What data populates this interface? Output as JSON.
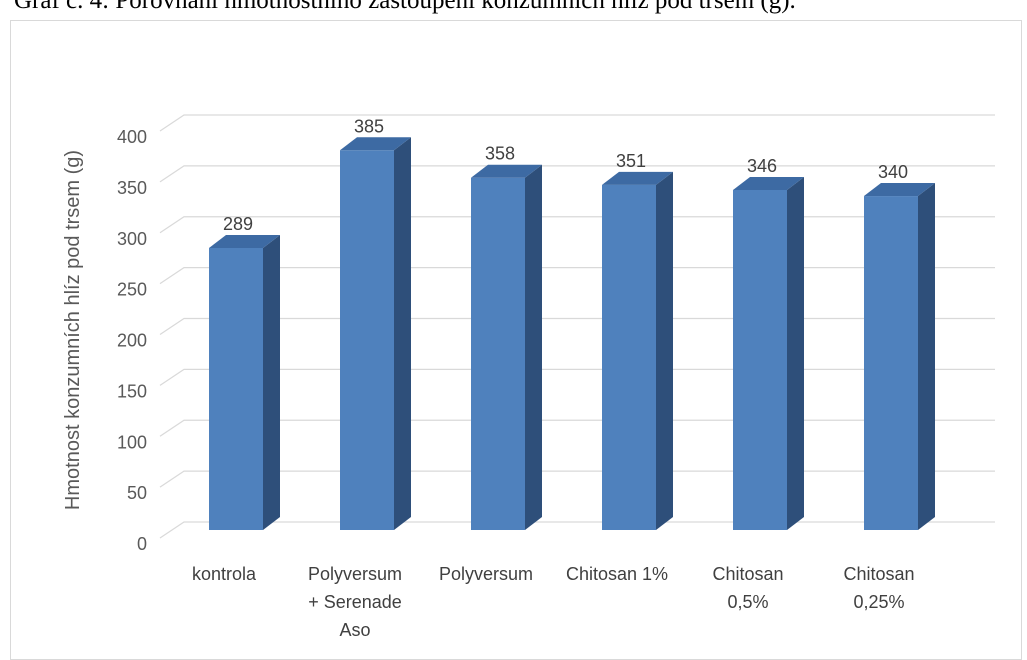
{
  "caption": "Graf č. 4: Porovnání hmotnostního zastoupení konzumních hlíz pod trsem (g).",
  "chart_data": {
    "type": "bar",
    "style": "3d-column",
    "categories": [
      [
        "kontrola"
      ],
      [
        "Polyversum",
        "+ Serenade",
        "Aso"
      ],
      [
        "Polyversum"
      ],
      [
        "Chitosan 1%"
      ],
      [
        "Chitosan",
        "0,5%"
      ],
      [
        "Chitosan",
        "0,25%"
      ]
    ],
    "values": [
      289,
      385,
      358,
      351,
      346,
      340
    ],
    "data_labels": [
      "289",
      "385",
      "358",
      "351",
      "346",
      "340"
    ],
    "ylabel": "Hmotnost konzumních hlíz pod trsem (g)",
    "ylim": [
      0,
      400
    ],
    "yticks": [
      "0",
      "50",
      "100",
      "150",
      "200",
      "250",
      "300",
      "350",
      "400"
    ],
    "grid": true,
    "legend": "none",
    "colors": {
      "front": "#4f81bd",
      "side": "#2e4f7a",
      "top": "#3d6aa3",
      "grid": "#d9d9d9"
    }
  }
}
